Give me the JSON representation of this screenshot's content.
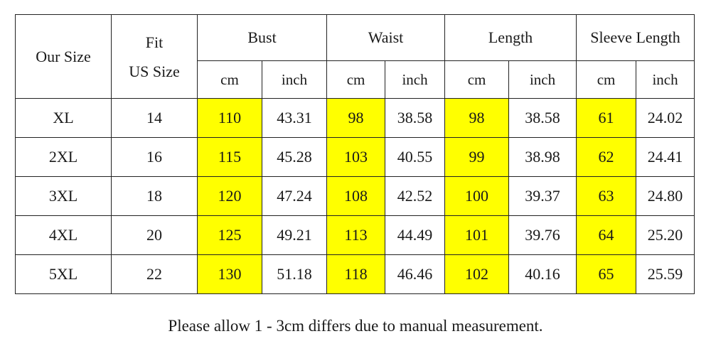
{
  "table": {
    "headers": {
      "our_size": "Our Size",
      "fit_line1": "Fit",
      "fit_line2": "US Size",
      "groups": [
        "Bust",
        "Waist",
        "Length",
        "Sleeve Length"
      ],
      "units": [
        "cm",
        "inch",
        "cm",
        "inch",
        "cm",
        "inch",
        "cm",
        "inch"
      ]
    },
    "rows": [
      {
        "size": "XL",
        "us": "14",
        "bust_cm": "110",
        "bust_in": "43.31",
        "waist_cm": "98",
        "waist_in": "38.58",
        "length_cm": "98",
        "length_in": "38.58",
        "sleeve_cm": "61",
        "sleeve_in": "24.02"
      },
      {
        "size": "2XL",
        "us": "16",
        "bust_cm": "115",
        "bust_in": "45.28",
        "waist_cm": "103",
        "waist_in": "40.55",
        "length_cm": "99",
        "length_in": "38.98",
        "sleeve_cm": "62",
        "sleeve_in": "24.41"
      },
      {
        "size": "3XL",
        "us": "18",
        "bust_cm": "120",
        "bust_in": "47.24",
        "waist_cm": "108",
        "waist_in": "42.52",
        "length_cm": "100",
        "length_in": "39.37",
        "sleeve_cm": "63",
        "sleeve_in": "24.80"
      },
      {
        "size": "4XL",
        "us": "20",
        "bust_cm": "125",
        "bust_in": "49.21",
        "waist_cm": "113",
        "waist_in": "44.49",
        "length_cm": "101",
        "length_in": "39.76",
        "sleeve_cm": "64",
        "sleeve_in": "25.20"
      },
      {
        "size": "5XL",
        "us": "22",
        "bust_cm": "130",
        "bust_in": "51.18",
        "waist_cm": "118",
        "waist_in": "46.46",
        "length_cm": "102",
        "length_in": "40.16",
        "sleeve_cm": "65",
        "sleeve_in": "25.59"
      }
    ]
  },
  "note": "Please allow 1 - 3cm differs due to manual measurement.",
  "colors": {
    "highlight": "#ffff00",
    "border": "#222222",
    "text": "#1a1a1a"
  }
}
